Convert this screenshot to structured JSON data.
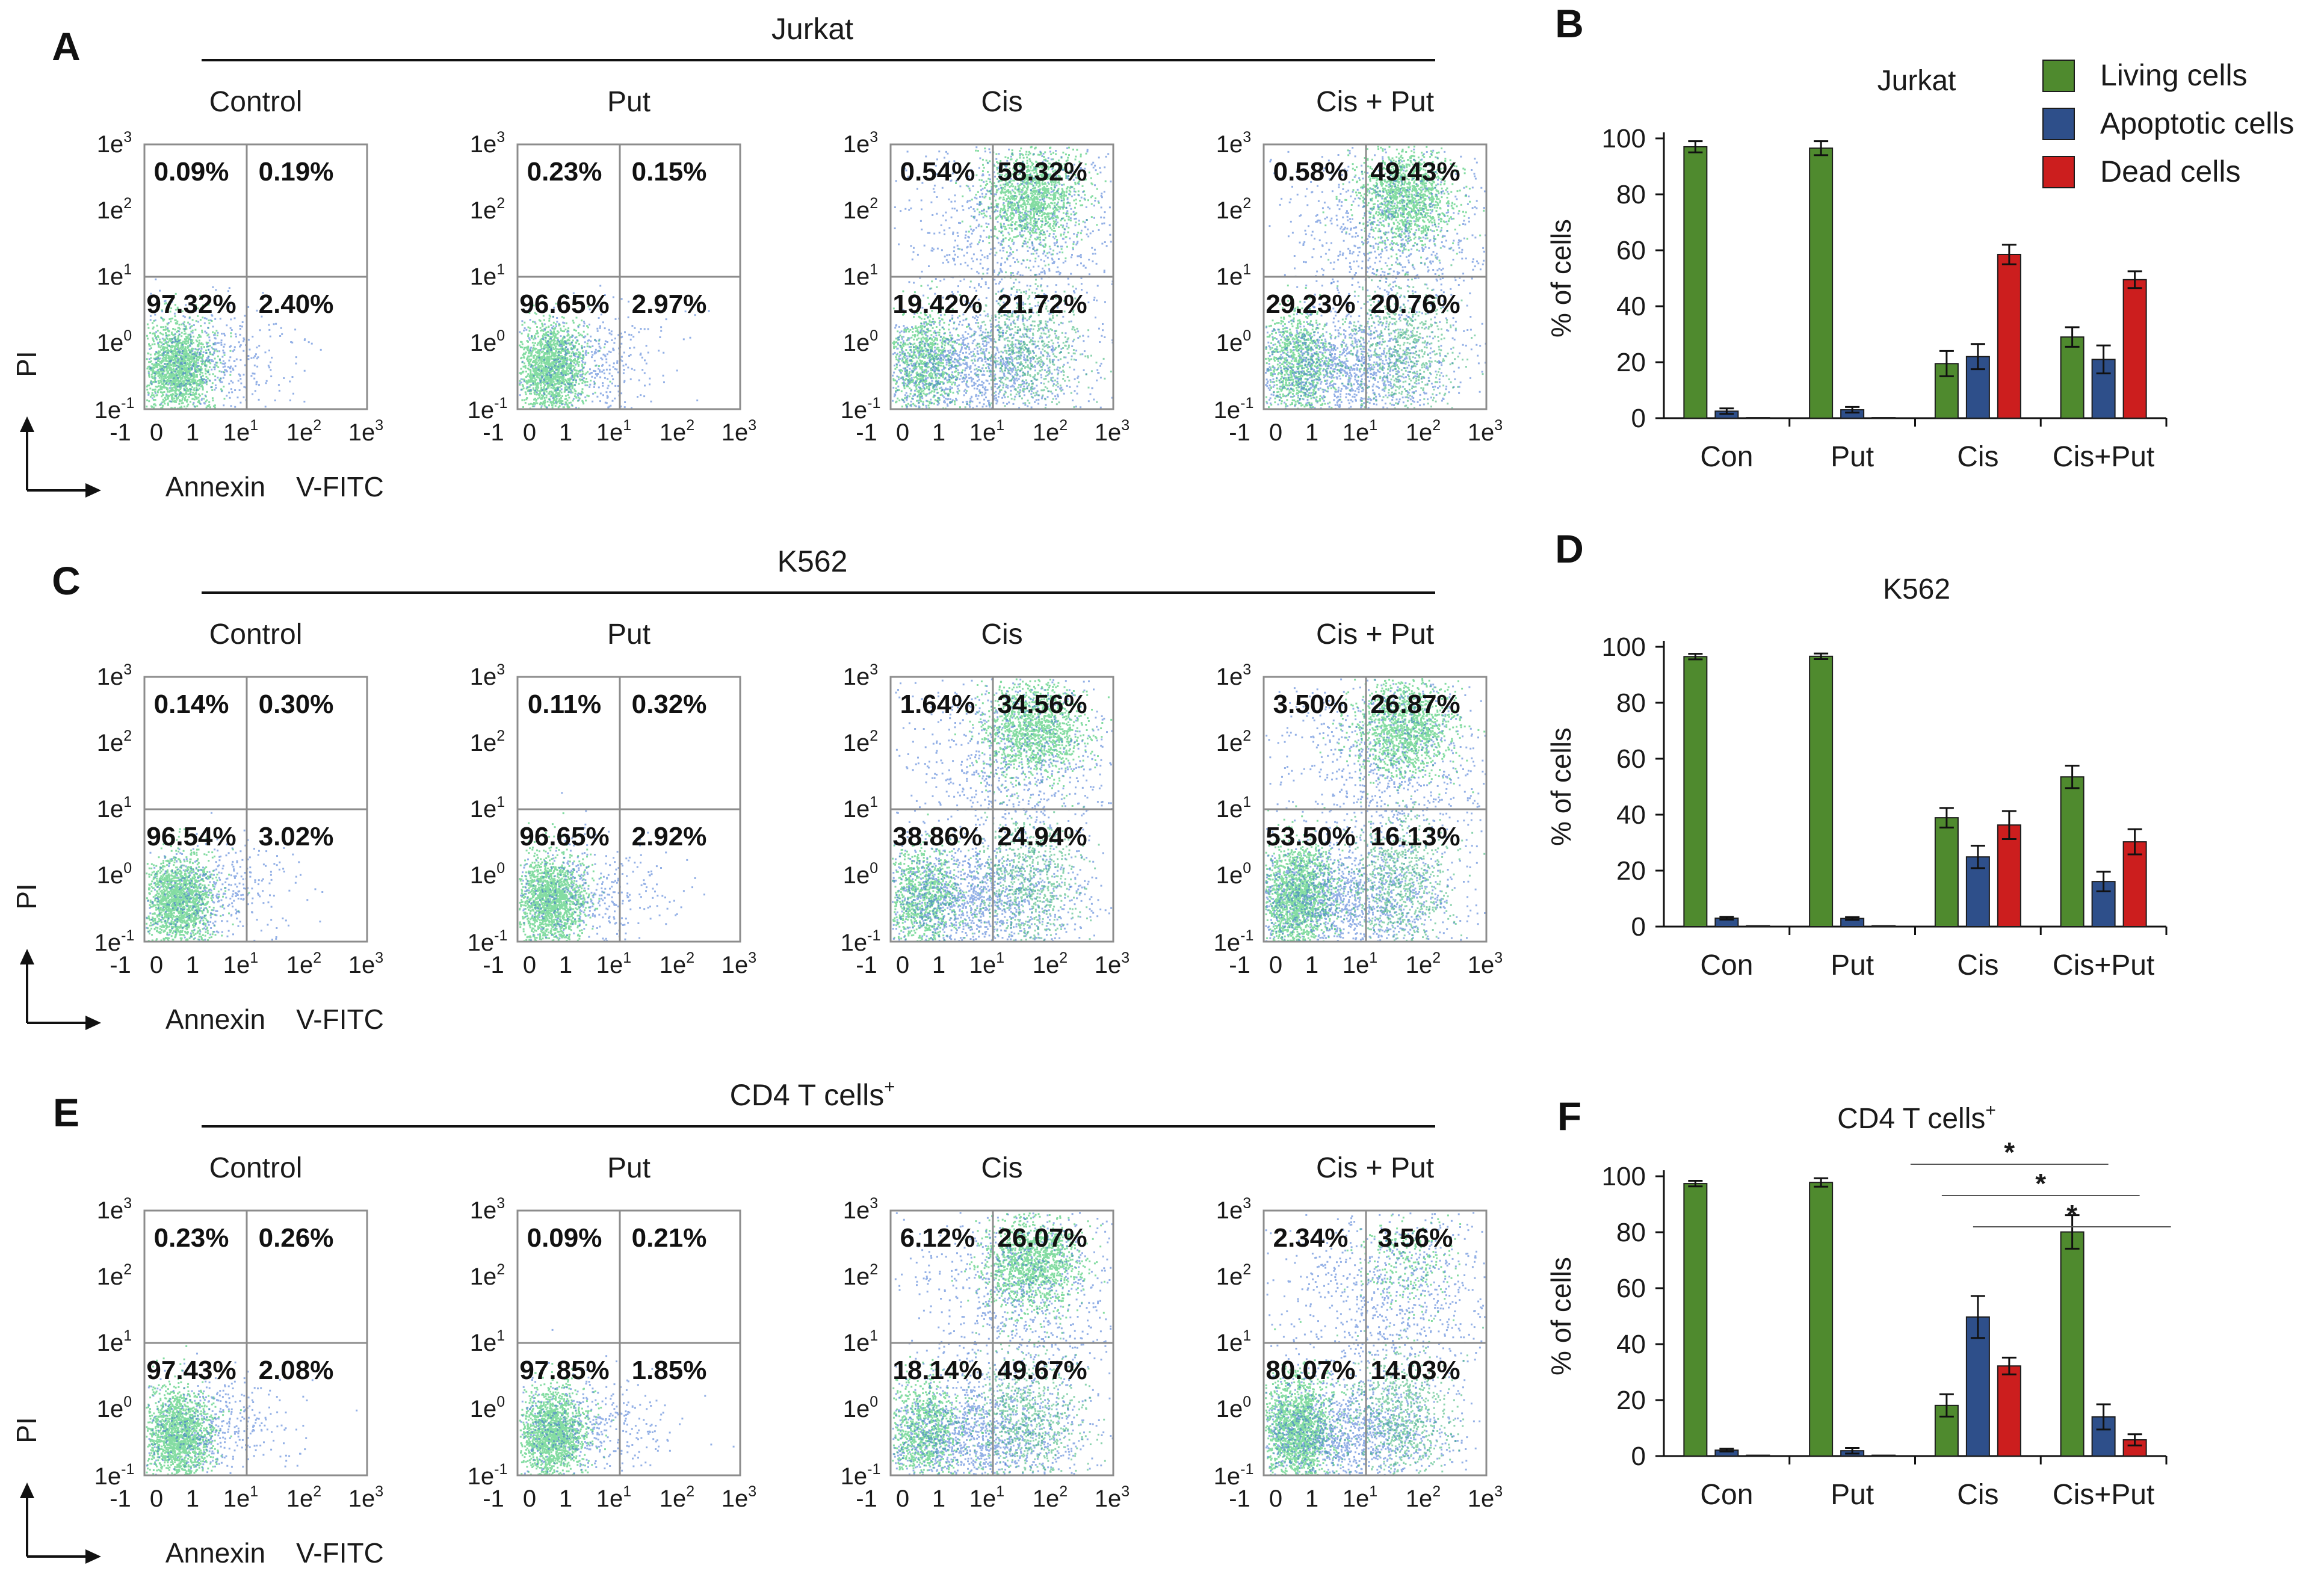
{
  "figure": {
    "panel_letters": [
      "A",
      "B",
      "C",
      "D",
      "E",
      "F"
    ],
    "pi_label": "PI",
    "annexin_label": "Annexin",
    "vfitc_label": "V-FITC",
    "x_ticks": [
      {
        "base": "-1",
        "sup": ""
      },
      {
        "base": "0",
        "sup": ""
      },
      {
        "base": "1",
        "sup": ""
      },
      {
        "base": "1e",
        "sup": "1"
      },
      {
        "base": "1e",
        "sup": "2"
      },
      {
        "base": "1e",
        "sup": "3"
      }
    ],
    "y_ticks": [
      {
        "base": "1e",
        "sup": "3"
      },
      {
        "base": "1e",
        "sup": "2"
      },
      {
        "base": "1e",
        "sup": "1"
      },
      {
        "base": "1e",
        "sup": "0"
      },
      {
        "base": "1e",
        "sup": "-1"
      }
    ],
    "legend": [
      {
        "label": "Living cells",
        "color": "#4f8a2e"
      },
      {
        "label": "Apoptotic  cells",
        "color": "#2e4f8a"
      },
      {
        "label": "Dead cells",
        "color": "#cc1e1e"
      }
    ]
  },
  "flow_rows": [
    {
      "group": "Jurkat",
      "group_sup": "",
      "conditions": [
        {
          "title": "Control",
          "quadrants": {
            "ul": "0.09%",
            "ur": "0.19%",
            "ll": "97.32%",
            "lr": "2.40%"
          }
        },
        {
          "title": "Put",
          "quadrants": {
            "ul": "0.23%",
            "ur": "0.15%",
            "ll": "96.65%",
            "lr": "2.97%"
          }
        },
        {
          "title": "Cis",
          "quadrants": {
            "ul": "0.54%",
            "ur": "58.32%",
            "ll": "19.42%",
            "lr": "21.72%"
          }
        },
        {
          "title": "Cis + Put",
          "quadrants": {
            "ul": "0.58%",
            "ur": "49.43%",
            "ll": "29.23%",
            "lr": "20.76%"
          }
        }
      ]
    },
    {
      "group": "K562",
      "group_sup": "",
      "conditions": [
        {
          "title": "Control",
          "quadrants": {
            "ul": "0.14%",
            "ur": "0.30%",
            "ll": "96.54%",
            "lr": "3.02%"
          }
        },
        {
          "title": "Put",
          "quadrants": {
            "ul": "0.11%",
            "ur": "0.32%",
            "ll": "96.65%",
            "lr": "2.92%"
          }
        },
        {
          "title": "Cis",
          "quadrants": {
            "ul": "1.64%",
            "ur": "34.56%",
            "ll": "38.86%",
            "lr": "24.94%"
          }
        },
        {
          "title": "Cis + Put",
          "quadrants": {
            "ul": "3.50%",
            "ur": "26.87%",
            "ll": "53.50%",
            "lr": "16.13%"
          }
        }
      ]
    },
    {
      "group": "CD4 T cells",
      "group_sup": "+",
      "conditions": [
        {
          "title": "Control",
          "quadrants": {
            "ul": "0.23%",
            "ur": "0.26%",
            "ll": "97.43%",
            "lr": "2.08%"
          }
        },
        {
          "title": "Put",
          "quadrants": {
            "ul": "0.09%",
            "ur": "0.21%",
            "ll": "97.85%",
            "lr": "1.85%"
          }
        },
        {
          "title": "Cis",
          "quadrants": {
            "ul": "6.12%",
            "ur": "26.07%",
            "ll": "18.14%",
            "lr": "49.67%"
          }
        },
        {
          "title": "Cis + Put",
          "quadrants": {
            "ul": "2.34%",
            "ur": "3.56%",
            "ll": "80.07%",
            "lr": "14.03%"
          }
        }
      ]
    }
  ],
  "chart_data": [
    {
      "type": "bar",
      "panel": "B",
      "title": "Jurkat",
      "title_sup": "",
      "ylabel": "% of cells",
      "xlabel": "",
      "ylim": [
        0,
        100
      ],
      "yticks": [
        0,
        20,
        40,
        60,
        80,
        100
      ],
      "categories": [
        "Con",
        "Put",
        "Cis",
        "Cis+Put"
      ],
      "series": [
        {
          "name": "Living cells",
          "values": [
            97,
            96.5,
            19.5,
            29
          ],
          "errors": [
            2,
            2.5,
            4.5,
            3.5
          ]
        },
        {
          "name": "Apoptotic  cells",
          "values": [
            2.5,
            3,
            22,
            21
          ],
          "errors": [
            1,
            1,
            4.5,
            5
          ]
        },
        {
          "name": "Dead cells",
          "values": [
            0.2,
            0.2,
            58.5,
            49.5
          ],
          "errors": [
            0.2,
            0.2,
            3.5,
            3
          ]
        }
      ],
      "significance": []
    },
    {
      "type": "bar",
      "panel": "D",
      "title": "K562",
      "title_sup": "",
      "ylabel": "% of cells",
      "xlabel": "",
      "ylim": [
        0,
        100
      ],
      "yticks": [
        0,
        20,
        40,
        60,
        80,
        100
      ],
      "categories": [
        "Con",
        "Put",
        "Cis",
        "Cis+Put"
      ],
      "series": [
        {
          "name": "Living cells",
          "values": [
            96.5,
            96.6,
            38.9,
            53.5
          ],
          "errors": [
            1,
            1,
            3.5,
            4
          ]
        },
        {
          "name": "Apoptotic  cells",
          "values": [
            3,
            2.9,
            24.9,
            16.1
          ],
          "errors": [
            0.5,
            0.5,
            4,
            3.5
          ]
        },
        {
          "name": "Dead cells",
          "values": [
            0.3,
            0.3,
            36.3,
            30.3
          ],
          "errors": [
            0.2,
            0.2,
            5,
            4.5
          ]
        }
      ],
      "significance": []
    },
    {
      "type": "bar",
      "panel": "F",
      "title": "CD4 T cells",
      "title_sup": "+",
      "ylabel": "% of cells",
      "xlabel": "",
      "ylim": [
        0,
        100
      ],
      "yticks": [
        0,
        20,
        40,
        60,
        80,
        100
      ],
      "categories": [
        "Con",
        "Put",
        "Cis",
        "Cis+Put"
      ],
      "series": [
        {
          "name": "Living cells",
          "values": [
            97.4,
            97.8,
            18.1,
            80.1
          ],
          "errors": [
            1,
            1.5,
            4,
            6
          ]
        },
        {
          "name": "Apoptotic  cells",
          "values": [
            2.1,
            1.9,
            49.7,
            14
          ],
          "errors": [
            0.5,
            1,
            7.5,
            4.5
          ]
        },
        {
          "name": "Dead cells",
          "values": [
            0.3,
            0.3,
            32.2,
            5.8
          ],
          "errors": [
            0.2,
            0.2,
            3,
            2
          ]
        }
      ],
      "significance": [
        {
          "label": "*",
          "from": {
            "cat": 2,
            "series": 0
          },
          "to": {
            "cat": 3,
            "series": 0
          }
        },
        {
          "label": "*",
          "from": {
            "cat": 2,
            "series": 1
          },
          "to": {
            "cat": 3,
            "series": 1
          }
        },
        {
          "label": "*",
          "from": {
            "cat": 2,
            "series": 2
          },
          "to": {
            "cat": 3,
            "series": 2
          }
        }
      ]
    }
  ]
}
